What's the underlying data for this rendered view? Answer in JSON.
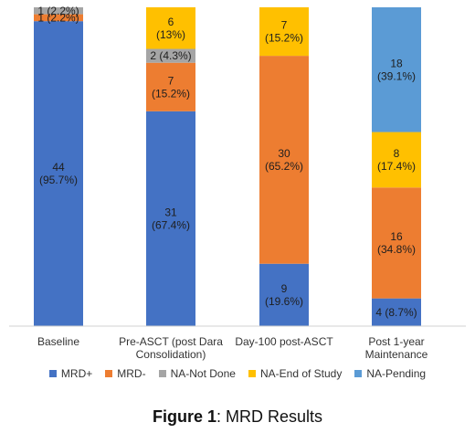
{
  "chart_data": {
    "type": "bar",
    "stacked": true,
    "percent_stacked": true,
    "categories": [
      [
        "Baseline"
      ],
      [
        "Pre-ASCT (post Dara",
        "Consolidation)"
      ],
      [
        "Day-100 post-ASCT"
      ],
      [
        "Post 1-year",
        "Maintenance"
      ]
    ],
    "series": [
      {
        "name": "MRD+",
        "color": "#4472C4",
        "values": [
          44,
          31,
          9,
          4
        ],
        "labels": [
          [
            "44",
            "(95.7%)"
          ],
          [
            "31",
            "(67.4%)"
          ],
          [
            "9",
            "(19.6%)"
          ],
          [
            "4 (8.7%)"
          ]
        ]
      },
      {
        "name": "MRD-",
        "color": "#ED7D31",
        "values": [
          1,
          7,
          30,
          16
        ],
        "labels": [
          [
            "1 (2.2%)"
          ],
          [
            "7",
            "(15.2%)"
          ],
          [
            "30",
            "(65.2%)"
          ],
          [
            "16",
            "(34.8%)"
          ]
        ]
      },
      {
        "name": "NA-Not Done",
        "color": "#A5A5A5",
        "values": [
          1,
          2,
          0,
          0
        ],
        "labels": [
          [
            "1 (2.2%)"
          ],
          [
            "2 (4.3%)"
          ],
          [],
          []
        ]
      },
      {
        "name": "NA-End of Study",
        "color": "#FFC000",
        "values": [
          0,
          6,
          7,
          8
        ],
        "labels": [
          [],
          [
            "6",
            "(13%)"
          ],
          [
            "7",
            "(15.2%)"
          ],
          [
            "8",
            "(17.4%)"
          ]
        ]
      },
      {
        "name": "NA-Pending",
        "color": "#5B9BD5",
        "values": [
          0,
          0,
          0,
          18
        ],
        "labels": [
          [],
          [],
          [],
          [
            "18",
            "(39.1%)"
          ]
        ]
      }
    ],
    "ylim": [
      0,
      46
    ],
    "legend_position": "bottom",
    "grid": false
  },
  "caption": {
    "bold": "Figure 1",
    "rest": ": MRD Results"
  }
}
